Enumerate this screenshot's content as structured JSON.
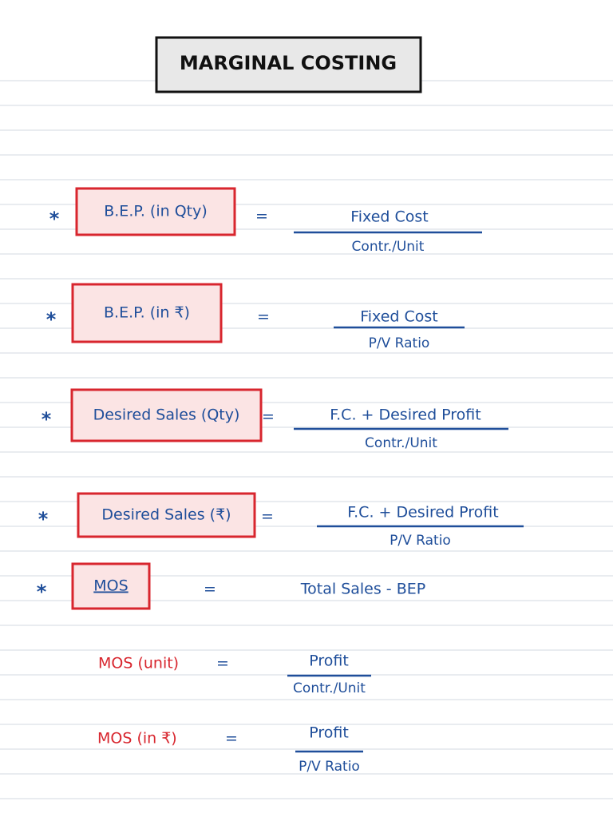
{
  "header": {
    "title": "MARGINAL COSTING"
  },
  "formulas": [
    {
      "bullet": "*",
      "label": "B.E.P. (in Qty)",
      "equals": "=",
      "numerator": "Fixed Cost",
      "denominator": "Contr./Unit",
      "label_color": "#1f4e9a"
    },
    {
      "bullet": "*",
      "label": "B.E.P. (in ₹)",
      "equals": "=",
      "numerator": "Fixed Cost",
      "denominator": "P/V Ratio",
      "label_color": "#1f4e9a"
    },
    {
      "bullet": "*",
      "label": "Desired Sales (Qty)",
      "equals": "=",
      "numerator": "F.C. + Desired Profit",
      "denominator": "Contr./Unit",
      "label_color": "#1f4e9a"
    },
    {
      "bullet": "*",
      "label": "Desired Sales (₹)",
      "equals": "=",
      "numerator": "F.C. + Desired Profit",
      "denominator": "P/V Ratio",
      "label_color": "#1f4e9a"
    },
    {
      "bullet": "*",
      "label": "MOS",
      "equals": "=",
      "expression": "Total Sales - BEP",
      "label_color": "#1f4e9a"
    },
    {
      "label": "MOS (unit)",
      "equals": "=",
      "numerator": "Profit",
      "denominator": "Contr./Unit",
      "label_color": "#d8262e"
    },
    {
      "label": "MOS (in ₹)",
      "equals": "=",
      "numerator": "Profit",
      "denominator": "P/V Ratio",
      "label_color": "#d8262e"
    }
  ]
}
